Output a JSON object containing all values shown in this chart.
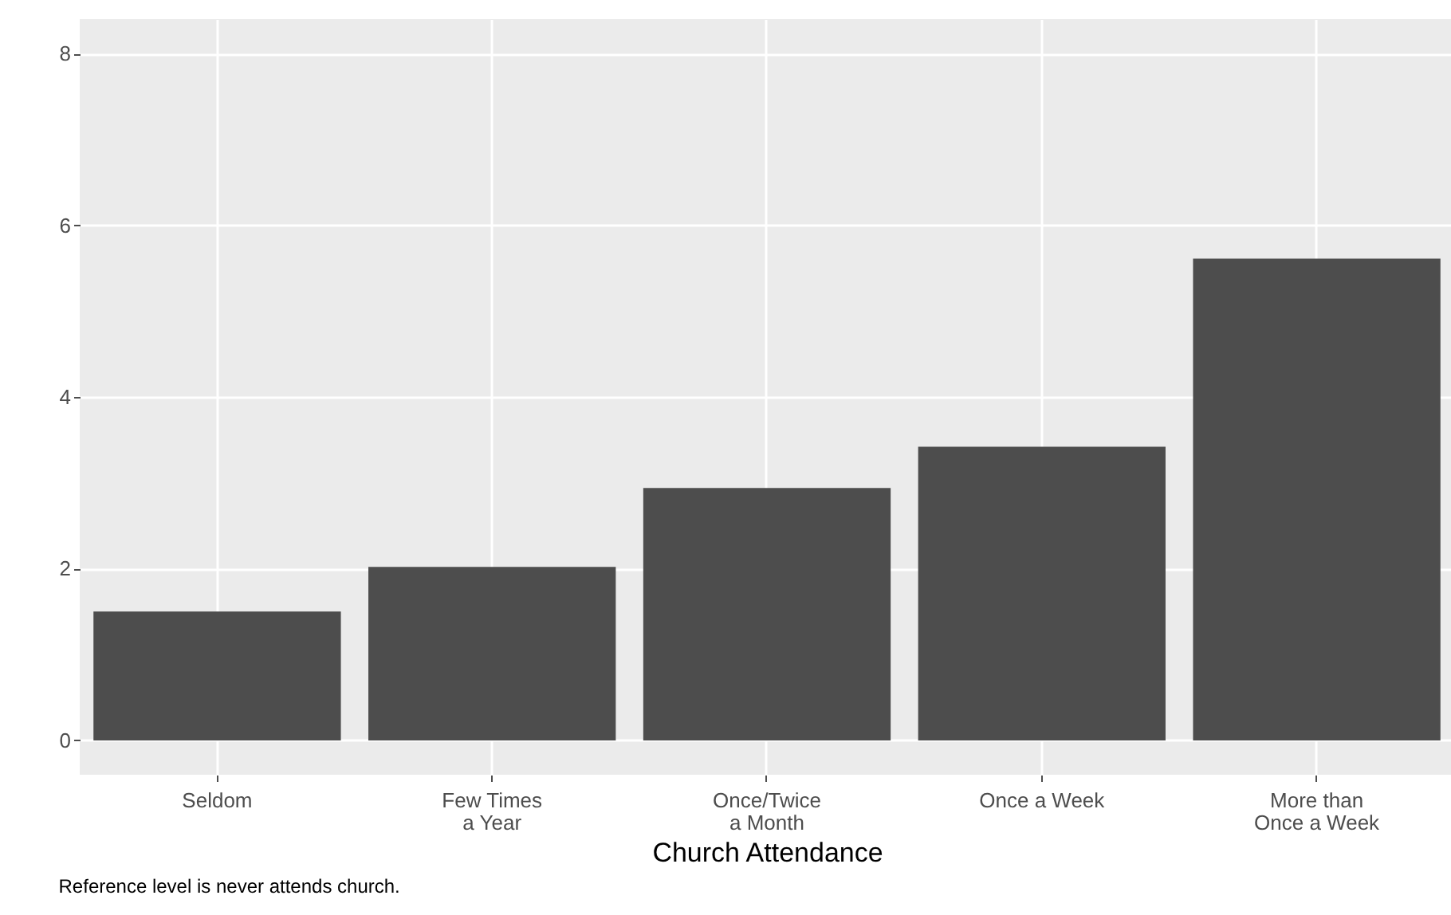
{
  "chart_data": {
    "type": "bar",
    "xlabel": "Church Attendance",
    "categories": [
      "Seldom",
      "Few Times\na Year",
      "Once/Twice\na Month",
      "Once a Week",
      "More than\nOnce a Week"
    ],
    "values": [
      1.5,
      2.02,
      2.94,
      3.42,
      5.61
    ],
    "color": "#4d4d4d",
    "ylim": [
      -0.4,
      8.4
    ],
    "yticks": [
      0,
      2,
      4,
      6,
      8
    ],
    "grid": true,
    "annotations": [
      "Reference level is never attends church."
    ]
  }
}
